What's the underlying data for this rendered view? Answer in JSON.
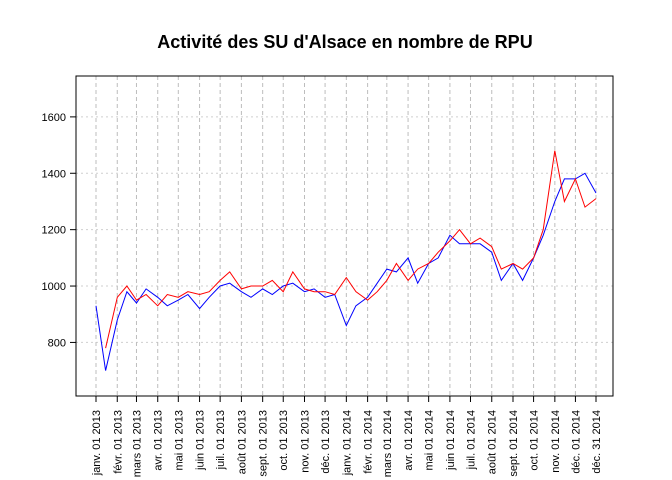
{
  "chart_data": {
    "type": "line",
    "title": "Activité des SU d'Alsace en nombre de RPU",
    "xlabel": "",
    "ylabel": "",
    "ylim": [
      610,
      1745
    ],
    "xlim": [
      "2013-01-01",
      "2014-12-31"
    ],
    "grid": true,
    "y_ticks": [
      800,
      1000,
      1200,
      1400,
      1600
    ],
    "x_ticks": [
      {
        "date": "2013-01-01",
        "label": "janv. 01 2013"
      },
      {
        "date": "2013-02-01",
        "label": "févr. 01 2013"
      },
      {
        "date": "2013-03-01",
        "label": "mars 01 2013"
      },
      {
        "date": "2013-04-01",
        "label": "avr. 01 2013"
      },
      {
        "date": "2013-05-01",
        "label": "mai 01 2013"
      },
      {
        "date": "2013-06-01",
        "label": "juin 01 2013"
      },
      {
        "date": "2013-07-01",
        "label": "juil. 01 2013"
      },
      {
        "date": "2013-08-01",
        "label": "août 01 2013"
      },
      {
        "date": "2013-09-01",
        "label": "sept. 01 2013"
      },
      {
        "date": "2013-10-01",
        "label": "oct. 01 2013"
      },
      {
        "date": "2013-11-01",
        "label": "nov. 01 2013"
      },
      {
        "date": "2013-12-01",
        "label": "déc. 01 2013"
      },
      {
        "date": "2014-01-01",
        "label": "janv. 01 2014"
      },
      {
        "date": "2014-02-01",
        "label": "févr. 01 2014"
      },
      {
        "date": "2014-03-01",
        "label": "mars 01 2014"
      },
      {
        "date": "2014-04-01",
        "label": "avr. 01 2014"
      },
      {
        "date": "2014-05-01",
        "label": "mai 01 2014"
      },
      {
        "date": "2014-06-01",
        "label": "juin 01 2014"
      },
      {
        "date": "2014-07-01",
        "label": "juil. 01 2014"
      },
      {
        "date": "2014-08-01",
        "label": "août 01 2014"
      },
      {
        "date": "2014-09-01",
        "label": "sept. 01 2014"
      },
      {
        "date": "2014-10-01",
        "label": "oct. 01 2014"
      },
      {
        "date": "2014-11-01",
        "label": "nov. 01 2014"
      },
      {
        "date": "2014-12-01",
        "label": "déc. 01 2014"
      },
      {
        "date": "2014-12-31",
        "label": "déc. 31 2014"
      }
    ],
    "series": [
      {
        "color": "#0000ff",
        "x": [
          "2013-01-01",
          "2013-01-15",
          "2013-02-01",
          "2013-02-15",
          "2013-03-01",
          "2013-03-15",
          "2013-04-01",
          "2013-04-15",
          "2013-05-01",
          "2013-05-15",
          "2013-06-01",
          "2013-06-15",
          "2013-07-01",
          "2013-07-15",
          "2013-08-01",
          "2013-08-15",
          "2013-09-01",
          "2013-09-15",
          "2013-10-01",
          "2013-10-15",
          "2013-11-01",
          "2013-11-15",
          "2013-12-01",
          "2013-12-15",
          "2014-01-01",
          "2014-01-15",
          "2014-02-01",
          "2014-02-15",
          "2014-03-01",
          "2014-03-15",
          "2014-04-01",
          "2014-04-15",
          "2014-05-01",
          "2014-05-15",
          "2014-06-01",
          "2014-06-15",
          "2014-07-01",
          "2014-07-15",
          "2014-08-01",
          "2014-08-15",
          "2014-09-01",
          "2014-09-15",
          "2014-10-01",
          "2014-10-15",
          "2014-11-01",
          "2014-11-15",
          "2014-12-01",
          "2014-12-15",
          "2014-12-31"
        ],
        "values": [
          930,
          700,
          880,
          980,
          940,
          990,
          960,
          930,
          950,
          970,
          920,
          960,
          1000,
          1010,
          980,
          960,
          990,
          970,
          1000,
          1010,
          980,
          990,
          960,
          970,
          860,
          930,
          960,
          1010,
          1060,
          1050,
          1100,
          1010,
          1080,
          1100,
          1180,
          1150,
          1150,
          1150,
          1120,
          1020,
          1080,
          1020,
          1100,
          1180,
          1300,
          1380,
          1380,
          1400,
          1330
        ]
      },
      {
        "color": "#ff0000",
        "x": [
          "2013-01-15",
          "2013-02-01",
          "2013-02-15",
          "2013-03-01",
          "2013-03-15",
          "2013-04-01",
          "2013-04-15",
          "2013-05-01",
          "2013-05-15",
          "2013-06-01",
          "2013-06-15",
          "2013-07-01",
          "2013-07-15",
          "2013-08-01",
          "2013-08-15",
          "2013-09-01",
          "2013-09-15",
          "2013-10-01",
          "2013-10-15",
          "2013-11-01",
          "2013-11-15",
          "2013-12-01",
          "2013-12-15",
          "2014-01-01",
          "2014-01-15",
          "2014-02-01",
          "2014-02-15",
          "2014-03-01",
          "2014-03-15",
          "2014-04-01",
          "2014-04-15",
          "2014-05-01",
          "2014-05-15",
          "2014-06-01",
          "2014-06-15",
          "2014-07-01",
          "2014-07-15",
          "2014-08-01",
          "2014-08-15",
          "2014-09-01",
          "2014-09-15",
          "2014-10-01",
          "2014-10-15",
          "2014-11-01",
          "2014-11-15",
          "2014-12-01",
          "2014-12-15",
          "2014-12-31"
        ],
        "values": [
          780,
          960,
          1000,
          950,
          970,
          930,
          970,
          960,
          980,
          970,
          980,
          1020,
          1050,
          990,
          1000,
          1000,
          1020,
          980,
          1050,
          990,
          980,
          980,
          970,
          1030,
          980,
          950,
          980,
          1020,
          1080,
          1020,
          1060,
          1080,
          1120,
          1160,
          1200,
          1150,
          1170,
          1140,
          1060,
          1080,
          1060,
          1100,
          1200,
          1480,
          1300,
          1380,
          1280,
          1310
        ]
      }
    ]
  }
}
